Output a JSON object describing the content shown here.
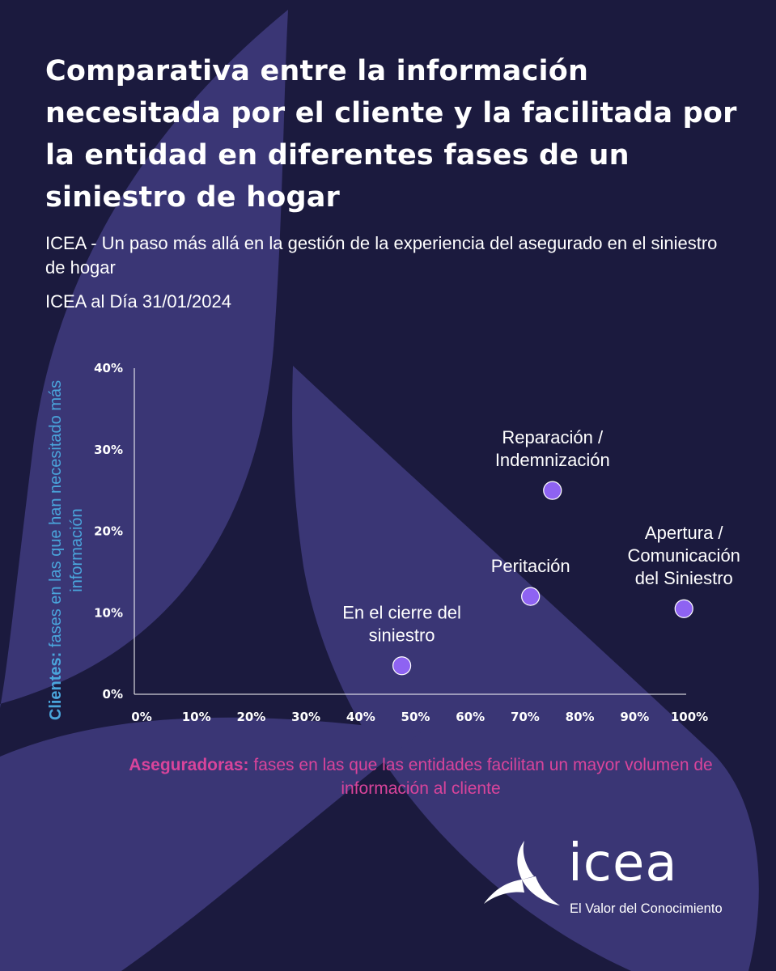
{
  "header": {
    "title": "Comparativa entre la información necesitada por el cliente y la facilitada por la entidad en diferentes fases de un siniestro de hogar",
    "subtitle": "ICEA - Un paso más allá en la gestión de la experiencia del asegurado en el siniestro de hogar",
    "date": "ICEA al Día 31/01/2024"
  },
  "chart_data": {
    "type": "scatter",
    "xlabel_bold": "Aseguradoras:",
    "xlabel_rest": "fases en las que las entidades facilitan un mayor volumen de información al cliente",
    "ylabel_bold": "Clientes:",
    "ylabel_rest": "fases en las que han necesitado más información",
    "xlim": [
      0,
      100
    ],
    "ylim": [
      0,
      40
    ],
    "x_ticks": [
      "0%",
      "10%",
      "20%",
      "30%",
      "40%",
      "50%",
      "60%",
      "70%",
      "80%",
      "90%",
      "100%"
    ],
    "y_ticks": [
      "0%",
      "10%",
      "20%",
      "30%",
      "40%"
    ],
    "grid": false,
    "points": [
      {
        "label_lines": [
          "En el cierre del",
          "siniestro"
        ],
        "x": 47.5,
        "y": 3.5
      },
      {
        "label_lines": [
          "Peritación"
        ],
        "x": 71,
        "y": 12
      },
      {
        "label_lines": [
          "Reparación /",
          "Indemnización"
        ],
        "x": 75,
        "y": 25
      },
      {
        "label_lines": [
          "Apertura /",
          "Comunicación",
          "del Siniestro"
        ],
        "x": 99,
        "y": 10.5
      }
    ],
    "colors": {
      "point": "#8e63f2",
      "point_outline": "#ffffff",
      "axis": "#ffffff",
      "xlabel": "#d9449b",
      "ylabel": "#4aa5dc"
    }
  },
  "brand": {
    "name": "icea",
    "tagline": "El Valor del Conocimiento",
    "logo_icon": "triskelion-icon"
  },
  "colors": {
    "background": "#1b1a3e",
    "shape": "#3a3675"
  }
}
